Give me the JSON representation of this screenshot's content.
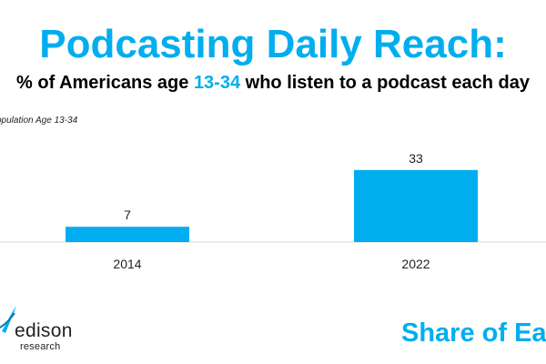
{
  "header": {
    "title": "Podcasting Daily Reach:",
    "subtitle_before": "% of Americans age ",
    "subtitle_highlight": "13-34",
    "subtitle_after": " who listen to a podcast each day",
    "note": "opulation Age 13-34"
  },
  "footer": {
    "logo_word": "edison",
    "logo_sub": "research",
    "right_text": "Share of Ea"
  },
  "colors": {
    "accent": "#00aeef",
    "bar": "#00aeef",
    "text": "#000000",
    "axis": "#d9d9d9"
  },
  "chart_data": {
    "type": "bar",
    "categories": [
      "2014",
      "2022"
    ],
    "values": [
      7,
      33
    ],
    "title": "",
    "xlabel": "",
    "ylabel": "",
    "ylim": [
      0,
      45
    ],
    "grid": false,
    "data_labels": true
  }
}
